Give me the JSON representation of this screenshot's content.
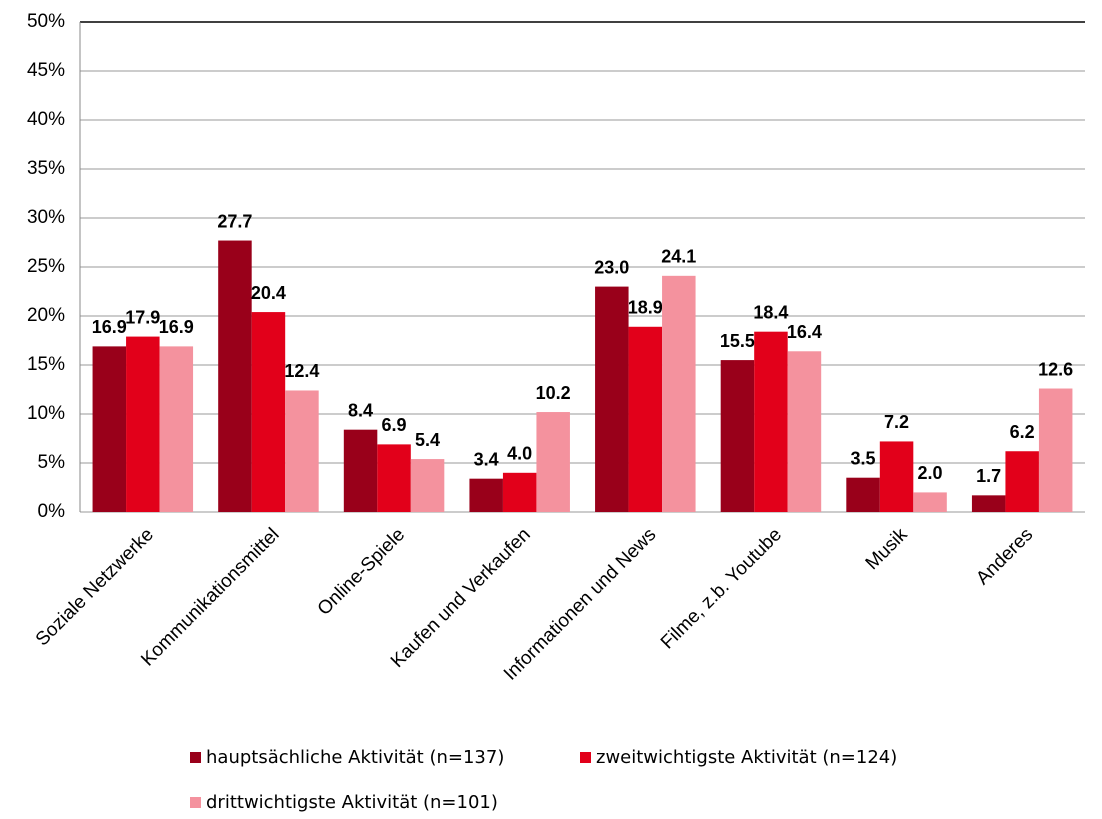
{
  "chart_data": {
    "type": "bar",
    "categories": [
      "Soziale Netzwerke",
      "Kommunikationsmittel",
      "Online-Spiele",
      "Kaufen und Verkaufen",
      "Informationen und News",
      "Filme, z.b. Youtube",
      "Musik",
      "Anderes"
    ],
    "series": [
      {
        "name": "hauptsächliche Aktivität (n=137)",
        "color": "#99001a",
        "values": [
          16.9,
          27.7,
          8.4,
          3.4,
          23.0,
          15.5,
          3.5,
          1.7
        ],
        "value_labels": [
          "16.9",
          "27.7",
          "8.4",
          "3.4",
          "23.0",
          "15.5",
          "3.5",
          "1.7"
        ]
      },
      {
        "name": "zweitwichtigste Aktivität (n=124)",
        "color": "#e2001a",
        "values": [
          17.9,
          20.4,
          6.9,
          4.0,
          18.9,
          18.4,
          7.2,
          6.2
        ],
        "value_labels": [
          "17.9",
          "20.4",
          "6.9",
          "4.0",
          "18.9",
          "18.4",
          "7.2",
          "6.2"
        ]
      },
      {
        "name": "drittwichtigste Aktivität (n=101)",
        "color": "#f4929e",
        "values": [
          16.9,
          12.4,
          5.4,
          10.2,
          24.1,
          16.4,
          2.0,
          12.6
        ],
        "value_labels": [
          "16.9",
          "12.4",
          "5.4",
          "10.2",
          "24.1",
          "16.4",
          "2.0",
          "12.6"
        ]
      }
    ],
    "ylim": [
      0,
      50
    ],
    "yticks": [
      {
        "value": 0,
        "label": "0%"
      },
      {
        "value": 5,
        "label": "5%"
      },
      {
        "value": 10,
        "label": "10%"
      },
      {
        "value": 15,
        "label": "15%"
      },
      {
        "value": 20,
        "label": "20%"
      },
      {
        "value": 25,
        "label": "25%"
      },
      {
        "value": 30,
        "label": "30%"
      },
      {
        "value": 35,
        "label": "35%"
      },
      {
        "value": 40,
        "label": "40%"
      },
      {
        "value": 45,
        "label": "45%"
      },
      {
        "value": 50,
        "label": "50%"
      }
    ],
    "grid": true
  }
}
